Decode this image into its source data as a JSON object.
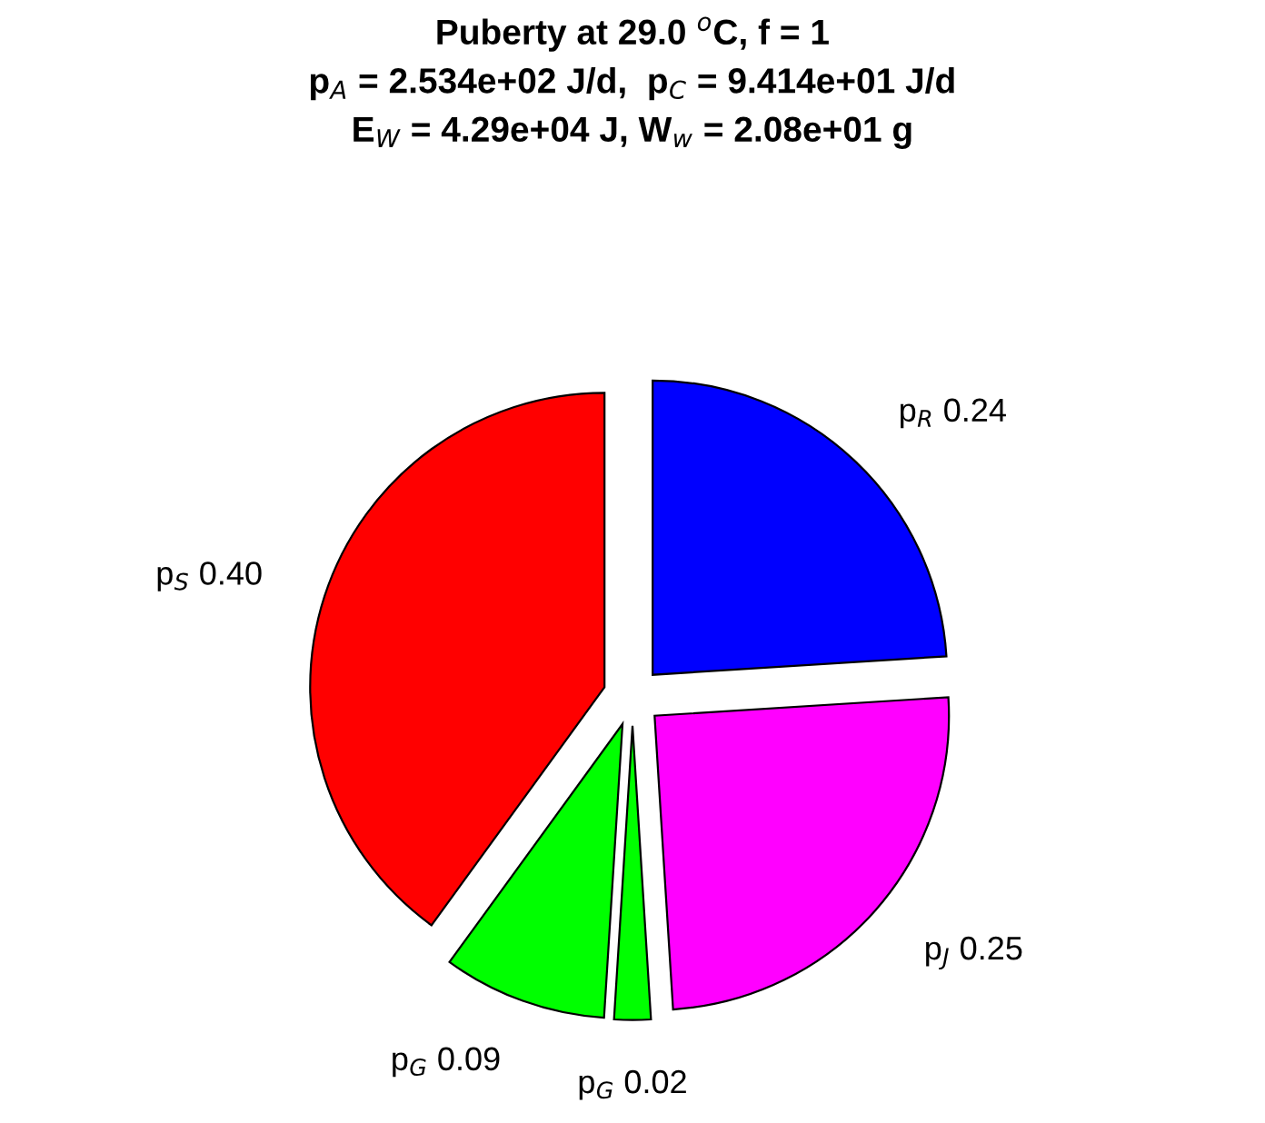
{
  "chart_data": {
    "type": "pie",
    "title": "Puberty at 29.0 $^{o}$C, f = 1\np$_{A}$ = 2.534e+02 J/d,  p$_{C}$ = 9.414e+01 J/d\nE$_{W}$ = 4.29e+04 J, W$_{w}$ = 2.08e+01 g",
    "categories": [
      "p$_{R}$",
      "p$_{J}$",
      "p$_{G}$",
      "p$_{G}$",
      "p$_{S}$"
    ],
    "values": [
      0.24,
      0.25,
      0.02,
      0.09,
      0.4
    ],
    "value_labels": [
      "0.24",
      "0.25",
      "0.02",
      "0.09",
      "0.40"
    ],
    "colors": [
      "#0000ff",
      "#ff00ff",
      "#00ff00",
      "#00ff00",
      "#ff0000"
    ],
    "legend": false
  }
}
